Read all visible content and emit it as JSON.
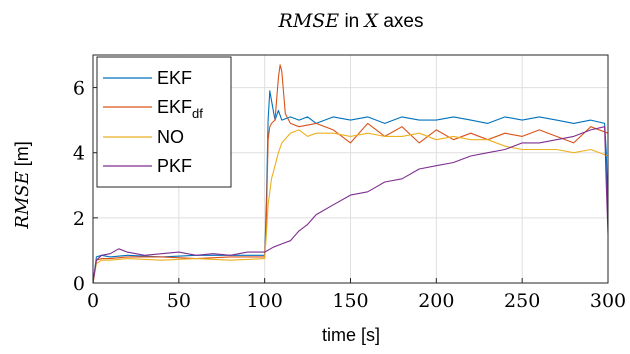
{
  "chart_data": {
    "type": "line",
    "title_math": "RMSE",
    "title_mid": " in ",
    "title_axis": "X",
    "title_tail": " axes",
    "xlabel": "time [s]",
    "ylabel_math": "RMSE",
    "ylabel_unit": " [m]",
    "xlim": [
      0,
      300
    ],
    "ylim": [
      0,
      7
    ],
    "xticks": [
      0,
      50,
      100,
      150,
      200,
      250,
      300
    ],
    "yticks": [
      0,
      2,
      4,
      6
    ],
    "grid": true,
    "legend_position": "top-left",
    "series": [
      {
        "name": "EKF",
        "color": "#0072BD",
        "x": [
          0,
          2,
          5,
          10,
          20,
          40,
          60,
          80,
          100,
          101,
          102,
          103,
          104,
          106,
          108,
          110,
          115,
          120,
          125,
          130,
          140,
          150,
          160,
          170,
          180,
          190,
          200,
          210,
          220,
          230,
          240,
          250,
          260,
          270,
          280,
          290,
          298,
          299,
          300
        ],
        "values": [
          0,
          0.8,
          0.85,
          0.8,
          0.85,
          0.8,
          0.85,
          0.85,
          0.85,
          2.5,
          5.0,
          5.9,
          5.6,
          5.0,
          5.3,
          5.0,
          5.1,
          5.0,
          5.1,
          4.9,
          5.1,
          5.0,
          5.1,
          4.9,
          5.1,
          5.0,
          5.0,
          5.1,
          5.0,
          4.9,
          5.1,
          5.0,
          5.1,
          5.0,
          4.9,
          5.0,
          4.9,
          4.0,
          2.0
        ]
      },
      {
        "name_main": "EKF",
        "name_sub": "df",
        "color": "#D95319",
        "x": [
          0,
          2,
          5,
          10,
          20,
          40,
          60,
          80,
          100,
          101,
          102,
          103,
          104,
          106,
          108,
          109,
          110,
          112,
          115,
          120,
          130,
          140,
          150,
          160,
          170,
          180,
          190,
          200,
          210,
          220,
          230,
          240,
          250,
          260,
          270,
          280,
          290,
          300
        ],
        "values": [
          0,
          0.7,
          0.75,
          0.75,
          0.8,
          0.8,
          0.75,
          0.8,
          0.8,
          2.0,
          4.4,
          4.8,
          4.9,
          5.0,
          6.3,
          6.7,
          6.5,
          5.2,
          4.9,
          4.8,
          4.9,
          4.7,
          4.3,
          4.9,
          4.5,
          4.8,
          4.3,
          4.7,
          4.4,
          4.6,
          4.4,
          4.6,
          4.5,
          4.7,
          4.5,
          4.3,
          4.8,
          4.6
        ]
      },
      {
        "name": "NO",
        "color": "#EDB120",
        "x": [
          0,
          2,
          5,
          10,
          20,
          40,
          60,
          80,
          100,
          101,
          102,
          104,
          106,
          108,
          110,
          115,
          120,
          125,
          130,
          140,
          150,
          160,
          170,
          180,
          190,
          200,
          210,
          220,
          230,
          240,
          250,
          260,
          270,
          280,
          290,
          300
        ],
        "values": [
          0,
          0.6,
          0.7,
          0.7,
          0.75,
          0.7,
          0.75,
          0.7,
          0.75,
          1.5,
          2.4,
          3.2,
          3.6,
          4.0,
          4.3,
          4.6,
          4.7,
          4.5,
          4.6,
          4.6,
          4.5,
          4.6,
          4.5,
          4.5,
          4.6,
          4.4,
          4.5,
          4.4,
          4.4,
          4.2,
          4.1,
          4.1,
          4.1,
          4.0,
          4.1,
          3.9
        ]
      },
      {
        "name": "PKF",
        "color": "#7E2F8E",
        "x": [
          0,
          2,
          5,
          10,
          15,
          20,
          30,
          40,
          50,
          60,
          70,
          80,
          90,
          100,
          105,
          110,
          115,
          120,
          125,
          130,
          140,
          150,
          160,
          170,
          180,
          190,
          200,
          210,
          220,
          230,
          240,
          250,
          260,
          270,
          280,
          290,
          298,
          299,
          300
        ],
        "values": [
          0,
          0.7,
          0.85,
          0.9,
          1.05,
          0.95,
          0.85,
          0.9,
          0.95,
          0.85,
          0.9,
          0.85,
          0.95,
          0.95,
          1.1,
          1.2,
          1.3,
          1.6,
          1.8,
          2.1,
          2.4,
          2.7,
          2.8,
          3.1,
          3.2,
          3.5,
          3.6,
          3.7,
          3.9,
          4.0,
          4.1,
          4.3,
          4.3,
          4.4,
          4.5,
          4.7,
          4.8,
          3.0,
          1.5
        ]
      }
    ]
  }
}
